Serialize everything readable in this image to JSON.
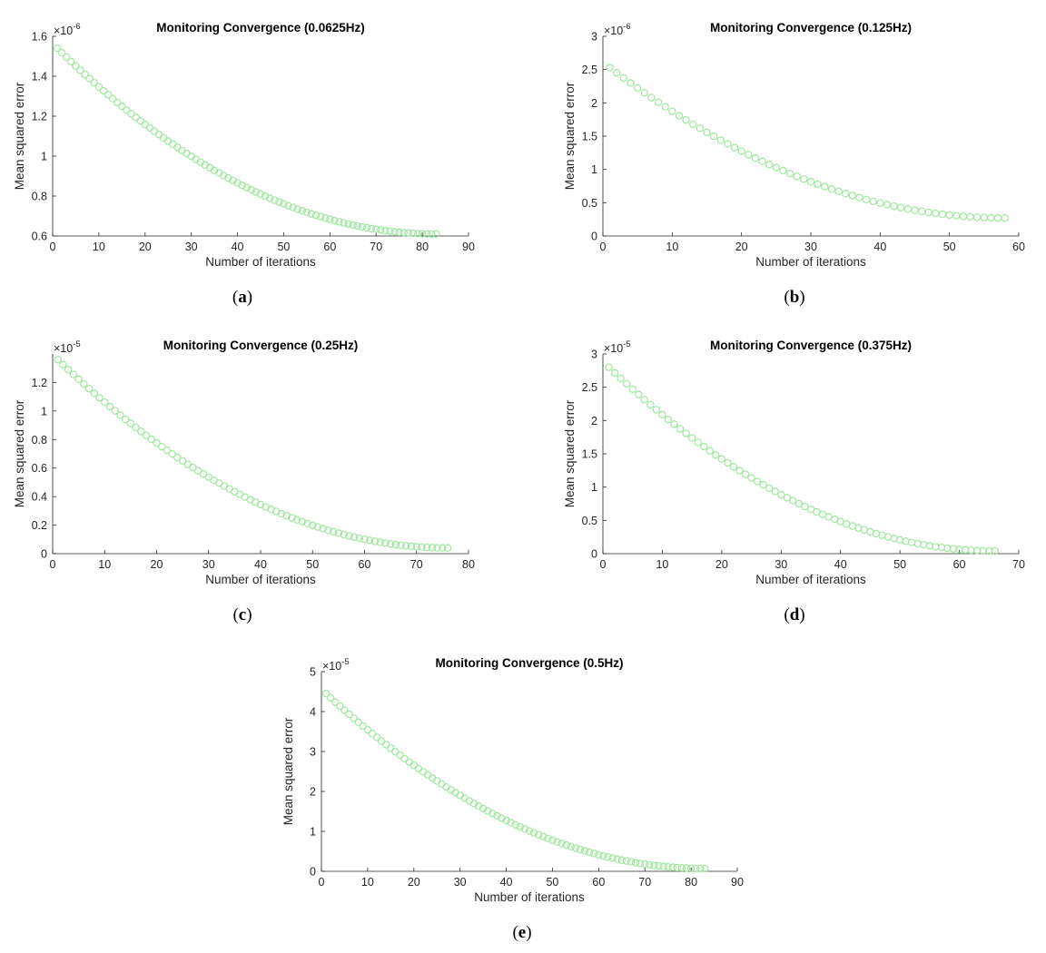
{
  "chart_data": [
    {
      "type": "scatter",
      "panel": "a",
      "caption_letter": "a",
      "title": "Monitoring Convergence (0.0625Hz)",
      "xlabel": "Number of iterations",
      "ylabel": "Mean squared error",
      "exponent_label": "×10",
      "exponent": "-6",
      "xlim": [
        0,
        90
      ],
      "ylim": [
        0.6,
        1.6
      ],
      "xticks": [
        0,
        10,
        20,
        30,
        40,
        50,
        60,
        70,
        80,
        90
      ],
      "yticks": [
        0.6,
        0.8,
        1,
        1.2,
        1.4,
        1.6
      ],
      "ytick_labels": [
        "0.6",
        "0.8",
        "1",
        "1.2",
        "1.4",
        "1.6"
      ],
      "n_points": 83,
      "y_start": 1.54,
      "y_end": 0.61,
      "marker_color": "#9ee89e"
    },
    {
      "type": "scatter",
      "panel": "b",
      "caption_letter": "b",
      "title": "Monitoring Convergence (0.125Hz)",
      "xlabel": "Number of iterations",
      "ylabel": "Mean squared error",
      "exponent_label": "×10",
      "exponent": "-6",
      "xlim": [
        0,
        60
      ],
      "ylim": [
        0,
        3
      ],
      "xticks": [
        0,
        10,
        20,
        30,
        40,
        50,
        60
      ],
      "yticks": [
        0,
        0.5,
        1,
        1.5,
        2,
        2.5,
        3
      ],
      "ytick_labels": [
        "0",
        "0.5",
        "1",
        "1.5",
        "2",
        "2.5",
        "3"
      ],
      "n_points": 58,
      "y_start": 2.53,
      "y_end": 0.27,
      "marker_color": "#9ee89e"
    },
    {
      "type": "scatter",
      "panel": "c",
      "caption_letter": "c",
      "title": "Monitoring Convergence (0.25Hz)",
      "xlabel": "Number of iterations",
      "ylabel": "Mean squared error",
      "exponent_label": "×10",
      "exponent": "-5",
      "xlim": [
        0,
        80
      ],
      "ylim": [
        0,
        1.4
      ],
      "xticks": [
        0,
        10,
        20,
        30,
        40,
        50,
        60,
        70,
        80
      ],
      "yticks": [
        0,
        0.2,
        0.4,
        0.6,
        0.8,
        1,
        1.2
      ],
      "ytick_labels": [
        "0",
        "0.2",
        "0.4",
        "0.6",
        "0.8",
        "1",
        "1.2"
      ],
      "n_points": 76,
      "y_start": 1.36,
      "y_end": 0.04,
      "marker_color": "#9ee89e"
    },
    {
      "type": "scatter",
      "panel": "d",
      "caption_letter": "d",
      "title": "Monitoring Convergence (0.375Hz)",
      "xlabel": "Number of iterations",
      "ylabel": "Mean squared error",
      "exponent_label": "×10",
      "exponent": "-5",
      "xlim": [
        0,
        70
      ],
      "ylim": [
        0,
        3
      ],
      "xticks": [
        0,
        10,
        20,
        30,
        40,
        50,
        60,
        70
      ],
      "yticks": [
        0,
        0.5,
        1,
        1.5,
        2,
        2.5,
        3
      ],
      "ytick_labels": [
        "0",
        "0.5",
        "1",
        "1.5",
        "2",
        "2.5",
        "3"
      ],
      "n_points": 66,
      "y_start": 2.8,
      "y_end": 0.04,
      "marker_color": "#9ee89e"
    },
    {
      "type": "scatter",
      "panel": "e",
      "caption_letter": "e",
      "title": "Monitoring Convergence (0.5Hz)",
      "xlabel": "Number of iterations",
      "ylabel": "Mean squared error",
      "exponent_label": "×10",
      "exponent": "-5",
      "xlim": [
        0,
        90
      ],
      "ylim": [
        0,
        5
      ],
      "xticks": [
        0,
        10,
        20,
        30,
        40,
        50,
        60,
        70,
        80,
        90
      ],
      "yticks": [
        0,
        1,
        2,
        3,
        4,
        5
      ],
      "ytick_labels": [
        "0",
        "1",
        "2",
        "3",
        "4",
        "5"
      ],
      "n_points": 83,
      "y_start": 4.45,
      "y_end": 0.07,
      "marker_color": "#9ee89e"
    }
  ]
}
